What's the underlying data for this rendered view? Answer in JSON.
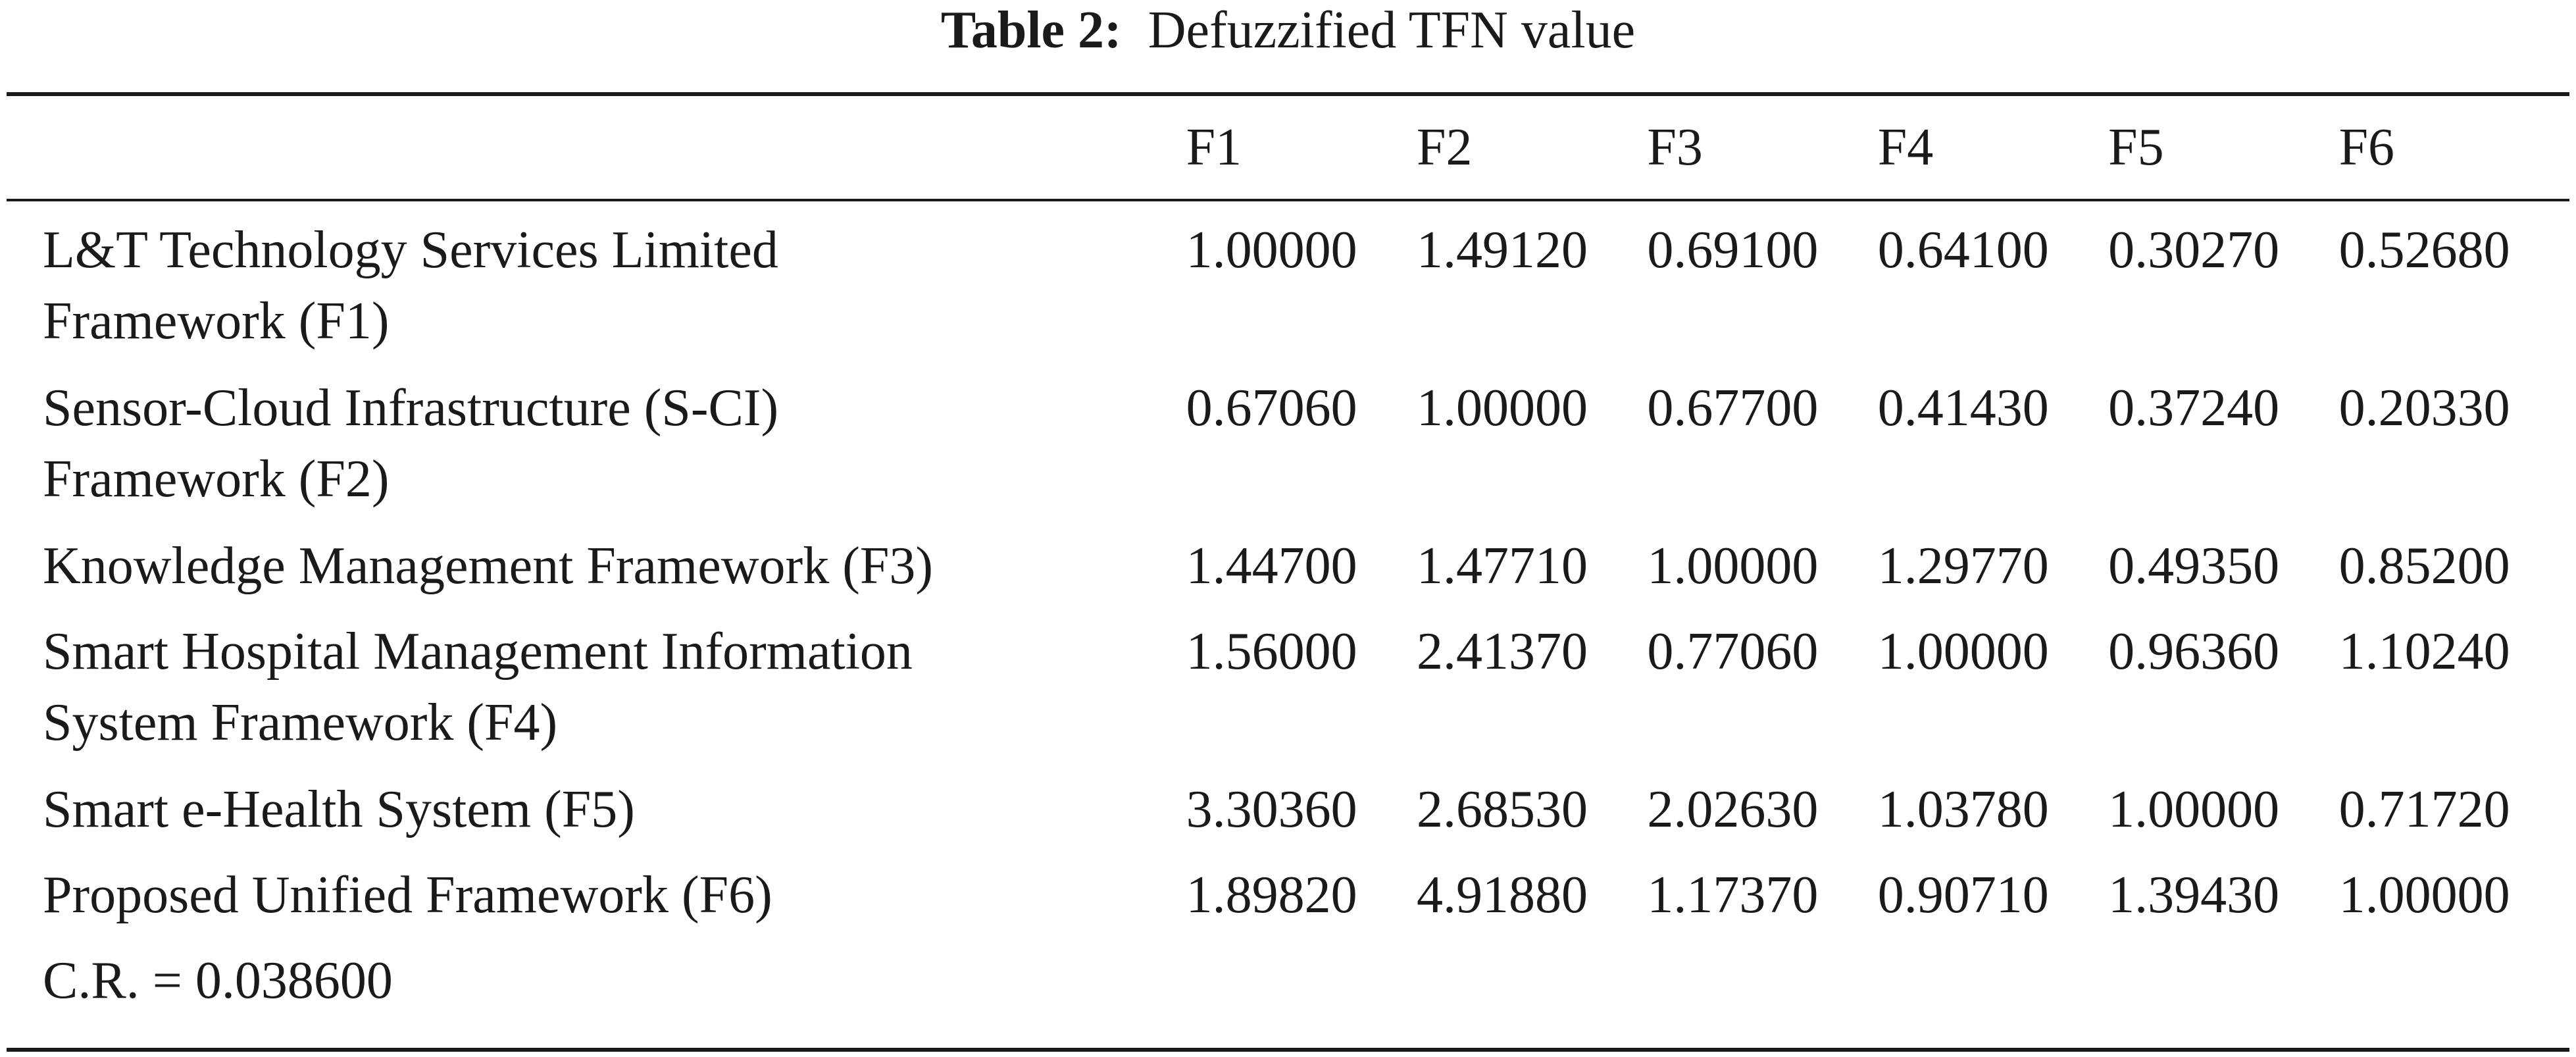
{
  "caption": {
    "label": "Table 2:",
    "text": "Defuzzified TFN value"
  },
  "table": {
    "columns": [
      "F1",
      "F2",
      "F3",
      "F4",
      "F5",
      "F6"
    ],
    "rows": [
      {
        "label_lines": [
          "L&T Technology Services Limited",
          "Framework (F1)"
        ],
        "values": [
          "1.00000",
          "1.49120",
          "0.69100",
          "0.64100",
          "0.30270",
          "0.52680"
        ]
      },
      {
        "label_lines": [
          "Sensor-Cloud Infrastructure (S-CI)",
          "Framework (F2)"
        ],
        "values": [
          "0.67060",
          "1.00000",
          "0.67700",
          "0.41430",
          "0.37240",
          "0.20330"
        ]
      },
      {
        "label_lines": [
          "Knowledge Management Framework (F3)"
        ],
        "values": [
          "1.44700",
          "1.47710",
          "1.00000",
          "1.29770",
          "0.49350",
          "0.85200"
        ]
      },
      {
        "label_lines": [
          "Smart Hospital Management Information",
          "System Framework (F4)"
        ],
        "values": [
          "1.56000",
          "2.41370",
          "0.77060",
          "1.00000",
          "0.96360",
          "1.10240"
        ]
      },
      {
        "label_lines": [
          "Smart e-Health System (F5)"
        ],
        "values": [
          "3.30360",
          "2.68530",
          "2.02630",
          "1.03780",
          "1.00000",
          "0.71720"
        ]
      },
      {
        "label_lines": [
          "Proposed Unified Framework (F6)"
        ],
        "values": [
          "1.89820",
          "4.91880",
          "1.17370",
          "0.90710",
          "1.39430",
          "1.00000"
        ]
      }
    ],
    "footer": "C.R. = 0.038600"
  }
}
